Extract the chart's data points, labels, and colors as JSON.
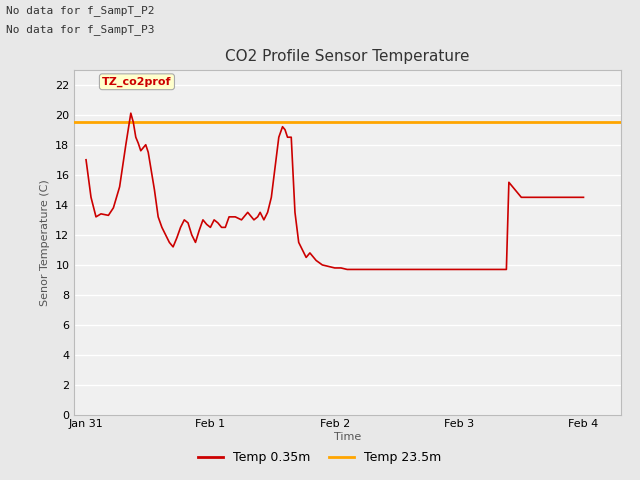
{
  "title": "CO2 Profile Sensor Temperature",
  "ylabel": "Senor Temperature (C)",
  "xlabel": "Time",
  "ylim": [
    0,
    23
  ],
  "yticks": [
    0,
    2,
    4,
    6,
    8,
    10,
    12,
    14,
    16,
    18,
    20,
    22
  ],
  "annotation_text1": "No data for f_SampT_P2",
  "annotation_text2": "No data for f_SampT_P3",
  "annotation_fontsize": 8,
  "cursor_label": "TZ_co2prof",
  "cursor_label_color": "#cc0000",
  "cursor_label_bg": "#ffffcc",
  "orange_line_y": 19.5,
  "orange_color": "#FFA500",
  "red_color": "#CC0000",
  "bg_color": "#e8e8e8",
  "plot_bg_color": "#f0f0f0",
  "grid_color": "#ffffff",
  "legend_label_red": "Temp 0.35m",
  "legend_label_orange": "Temp 23.5m",
  "title_fontsize": 11,
  "label_fontsize": 8,
  "tick_fontsize": 8,
  "red_x": [
    0.0,
    0.04,
    0.08,
    0.12,
    0.18,
    0.22,
    0.27,
    0.32,
    0.36,
    0.38,
    0.4,
    0.42,
    0.44,
    0.46,
    0.48,
    0.5,
    0.52,
    0.55,
    0.58,
    0.61,
    0.64,
    0.67,
    0.7,
    0.73,
    0.76,
    0.79,
    0.82,
    0.85,
    0.88,
    0.91,
    0.94,
    0.97,
    1.0,
    1.03,
    1.06,
    1.09,
    1.12,
    1.15,
    1.2,
    1.25,
    1.3,
    1.35,
    1.38,
    1.4,
    1.43,
    1.46,
    1.49,
    1.52,
    1.55,
    1.58,
    1.6,
    1.62,
    1.65,
    1.68,
    1.71,
    1.74,
    1.77,
    1.8,
    1.85,
    1.9,
    1.95,
    2.0,
    2.05,
    2.1,
    2.15,
    2.2,
    2.25,
    2.3,
    2.35,
    2.4,
    2.45,
    2.5,
    2.55,
    2.6,
    2.65,
    2.7,
    2.75,
    2.8,
    2.85,
    2.9,
    2.95,
    3.0,
    3.05,
    3.1,
    3.15,
    3.2,
    3.25,
    3.3,
    3.33,
    3.36,
    3.38,
    3.4,
    3.5,
    3.55,
    3.6,
    3.65,
    3.7,
    3.75,
    3.8,
    3.85,
    3.9,
    3.95,
    4.0
  ],
  "red_y": [
    17.0,
    14.5,
    13.2,
    13.4,
    13.3,
    13.8,
    15.2,
    18.0,
    20.1,
    19.5,
    18.5,
    18.1,
    17.6,
    17.8,
    18.0,
    17.5,
    16.5,
    15.0,
    13.2,
    12.5,
    12.0,
    11.5,
    11.2,
    11.8,
    12.5,
    13.0,
    12.8,
    12.0,
    11.5,
    12.3,
    13.0,
    12.7,
    12.5,
    13.0,
    12.8,
    12.5,
    12.5,
    13.2,
    13.2,
    13.0,
    13.5,
    13.0,
    13.2,
    13.5,
    13.0,
    13.5,
    14.5,
    16.5,
    18.5,
    19.2,
    19.0,
    18.5,
    18.5,
    13.5,
    11.5,
    11.0,
    10.5,
    10.8,
    10.3,
    10.0,
    9.9,
    9.8,
    9.8,
    9.7,
    9.7,
    9.7,
    9.7,
    9.7,
    9.7,
    9.7,
    9.7,
    9.7,
    9.7,
    9.7,
    9.7,
    9.7,
    9.7,
    9.7,
    9.7,
    9.7,
    9.7,
    9.7,
    9.7,
    9.7,
    9.7,
    9.7,
    9.7,
    9.7,
    9.7,
    9.7,
    9.7,
    15.5,
    14.5,
    14.5,
    14.5,
    14.5,
    14.5,
    14.5,
    14.5,
    14.5,
    14.5,
    14.5,
    14.5
  ],
  "xtick_positions": [
    0.0,
    1.0,
    2.0,
    3.0,
    4.0
  ],
  "xtick_labels": [
    "Jan 31",
    "Feb 1",
    "Feb 2",
    "Feb 3",
    "Feb 4"
  ]
}
